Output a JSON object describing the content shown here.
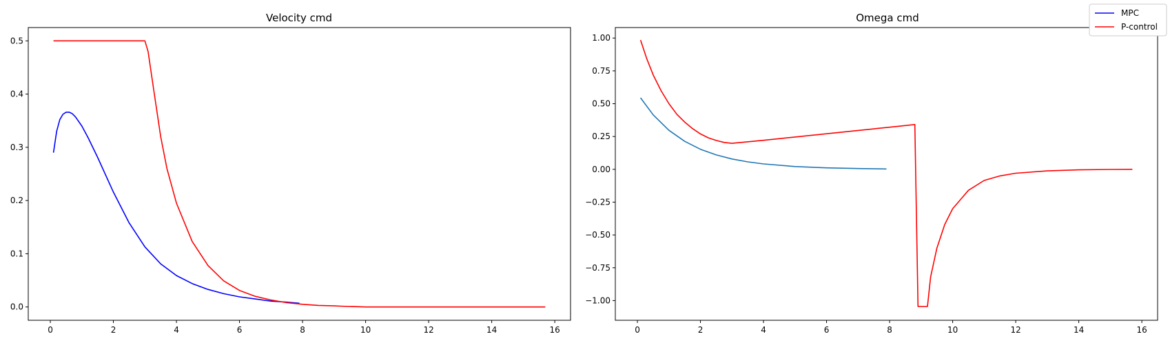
{
  "legend": {
    "placement": "top-right",
    "entries": [
      {
        "label": "MPC",
        "color": "#0000ff"
      },
      {
        "label": "P-control",
        "color": "#ff0000"
      }
    ]
  },
  "chart_data": [
    {
      "type": "line",
      "title": "Velocity cmd",
      "xlabel": "",
      "ylabel": "",
      "xlim": [
        -0.7,
        16.5
      ],
      "ylim": [
        -0.025,
        0.525
      ],
      "xticks": [
        0,
        2,
        4,
        6,
        8,
        10,
        12,
        14,
        16
      ],
      "yticks": [
        0.0,
        0.1,
        0.2,
        0.3,
        0.4,
        0.5
      ],
      "xtick_labels": [
        "0",
        "2",
        "4",
        "6",
        "8",
        "10",
        "12",
        "14",
        "16"
      ],
      "ytick_labels": [
        "0.0",
        "0.1",
        "0.2",
        "0.3",
        "0.4",
        "0.5"
      ],
      "grid": false,
      "series": [
        {
          "name": "MPC",
          "color": "#0000ff",
          "x": [
            0.1,
            0.2,
            0.3,
            0.4,
            0.5,
            0.6,
            0.7,
            0.8,
            1.0,
            1.2,
            1.5,
            2.0,
            2.5,
            3.0,
            3.5,
            4.0,
            4.5,
            5.0,
            5.5,
            6.0,
            6.5,
            7.0,
            7.5,
            7.9
          ],
          "y": [
            0.29,
            0.33,
            0.352,
            0.362,
            0.366,
            0.366,
            0.363,
            0.357,
            0.34,
            0.318,
            0.281,
            0.216,
            0.158,
            0.113,
            0.081,
            0.059,
            0.044,
            0.033,
            0.025,
            0.019,
            0.015,
            0.011,
            0.009,
            0.007
          ]
        },
        {
          "name": "P-control",
          "color": "#ff0000",
          "x": [
            0.1,
            1.0,
            2.0,
            3.0,
            3.1,
            3.3,
            3.5,
            3.7,
            4.0,
            4.5,
            5.0,
            5.5,
            6.0,
            6.5,
            7.0,
            7.5,
            8.0,
            8.5,
            9.0,
            9.2,
            10,
            11,
            12,
            13,
            14,
            15,
            15.7
          ],
          "y": [
            0.5,
            0.5,
            0.5,
            0.5,
            0.48,
            0.4,
            0.32,
            0.26,
            0.195,
            0.123,
            0.078,
            0.049,
            0.031,
            0.02,
            0.013,
            0.008,
            0.005,
            0.003,
            0.002,
            0.0015,
            0.0,
            0.0,
            0.0,
            0.0,
            0.0,
            0.0,
            0.0
          ]
        }
      ]
    },
    {
      "type": "line",
      "title": "Omega cmd",
      "xlabel": "",
      "ylabel": "",
      "xlim": [
        -0.7,
        16.5
      ],
      "ylim": [
        -1.15,
        1.08
      ],
      "xticks": [
        0,
        2,
        4,
        6,
        8,
        10,
        12,
        14,
        16
      ],
      "yticks": [
        1.0,
        0.75,
        0.5,
        0.25,
        0.0,
        -0.25,
        -0.5,
        -0.75,
        -1.0
      ],
      "xtick_labels": [
        "0",
        "2",
        "4",
        "6",
        "8",
        "10",
        "12",
        "14",
        "16"
      ],
      "ytick_labels": [
        "1.00",
        "0.75",
        "0.50",
        "0.25",
        "0.00",
        "−0.25",
        "−0.50",
        "−0.75",
        "−1.00"
      ],
      "grid": false,
      "series": [
        {
          "color": "#1f77b4",
          "x": [
            0.1,
            0.5,
            1.0,
            1.5,
            2.0,
            2.5,
            3.0,
            3.5,
            4.0,
            5.0,
            6.0,
            7.0,
            7.9
          ],
          "y": [
            0.545,
            0.415,
            0.297,
            0.213,
            0.153,
            0.11,
            0.079,
            0.057,
            0.041,
            0.021,
            0.011,
            0.006,
            0.003
          ]
        },
        {
          "color": "#ff0000",
          "x": [
            0.1,
            0.3,
            0.5,
            0.75,
            1.0,
            1.25,
            1.5,
            1.75,
            2.0,
            2.25,
            2.5,
            2.75,
            3.0,
            4.0,
            5.0,
            6.0,
            7.0,
            8.0,
            8.8,
            8.9,
            9.2,
            9.3,
            9.5,
            9.75,
            10.0,
            10.5,
            11.0,
            11.5,
            12.0,
            13.0,
            14.0,
            15.0,
            15.7
          ],
          "y": [
            0.985,
            0.84,
            0.72,
            0.6,
            0.5,
            0.42,
            0.36,
            0.31,
            0.27,
            0.24,
            0.22,
            0.205,
            0.198,
            0.221,
            0.246,
            0.271,
            0.296,
            0.321,
            0.341,
            -1.045,
            -1.045,
            -0.82,
            -0.6,
            -0.42,
            -0.3,
            -0.16,
            -0.085,
            -0.05,
            -0.03,
            -0.012,
            -0.004,
            -0.001,
            0.0
          ]
        }
      ]
    }
  ]
}
